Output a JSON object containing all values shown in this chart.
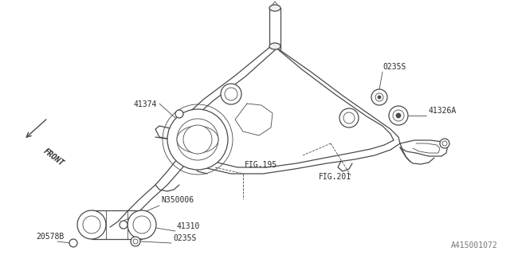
{
  "bg_color": "#ffffff",
  "line_color": "#4a4a4a",
  "text_color": "#2a2a2a",
  "title_ref": "A415001072",
  "labels": {
    "front": "FRONT",
    "fig195": "FIG.195",
    "fig201": "FIG.201",
    "n350006": "N350006",
    "part_41374": "41374",
    "part_41310": "41310",
    "part_41326A": "41326A",
    "part_0235S_top": "0235S",
    "part_0235S_bot": "0235S",
    "part_20578B": "20578B"
  },
  "fontsize_label": 7,
  "fontsize_ref": 7,
  "lw_main": 0.9,
  "lw_thin": 0.6
}
